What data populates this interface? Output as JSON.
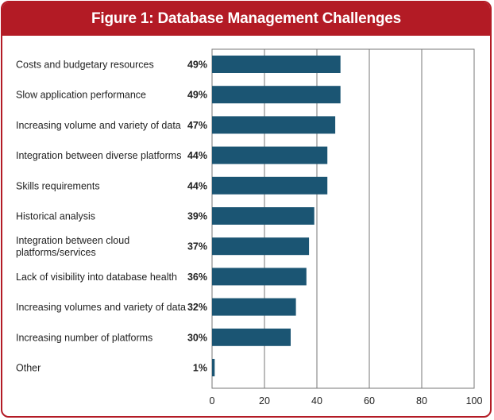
{
  "title": "Figure 1: Database Management Challenges",
  "colors": {
    "frame": "#b31b25",
    "bar": "#1b5573",
    "grid": "#777777"
  },
  "chart_data": {
    "type": "bar",
    "orientation": "horizontal",
    "title": "Figure 1: Database Management Challenges",
    "categories": [
      "Costs and budgetary resources",
      "Slow application performance",
      "Increasing volume and variety of data",
      "Integration between diverse platforms",
      "Skills requirements",
      "Historical analysis",
      "Integration between cloud platforms/services",
      "Lack of visibility into database health",
      "Increasing volumes and variety of data",
      "Increasing number of platforms",
      "Other"
    ],
    "category_lines": [
      [
        "Costs and budgetary resources"
      ],
      [
        "Slow application performance"
      ],
      [
        "Increasing volume and variety of data"
      ],
      [
        "Integration between diverse platforms"
      ],
      [
        "Skills requirements"
      ],
      [
        "Historical analysis"
      ],
      [
        "Integration between cloud",
        "platforms/services"
      ],
      [
        "Lack of visibility into database health"
      ],
      [
        "Increasing volumes and variety of data"
      ],
      [
        "Increasing number of platforms"
      ],
      [
        "Other"
      ]
    ],
    "values": [
      49,
      49,
      47,
      44,
      44,
      39,
      37,
      36,
      32,
      30,
      1
    ],
    "value_labels": [
      "49%",
      "49%",
      "47%",
      "44%",
      "44%",
      "39%",
      "37%",
      "36%",
      "32%",
      "30%",
      "1%"
    ],
    "xlim": [
      0,
      100
    ],
    "xticks": [
      0,
      20,
      40,
      60,
      80,
      100
    ],
    "grid": true
  }
}
